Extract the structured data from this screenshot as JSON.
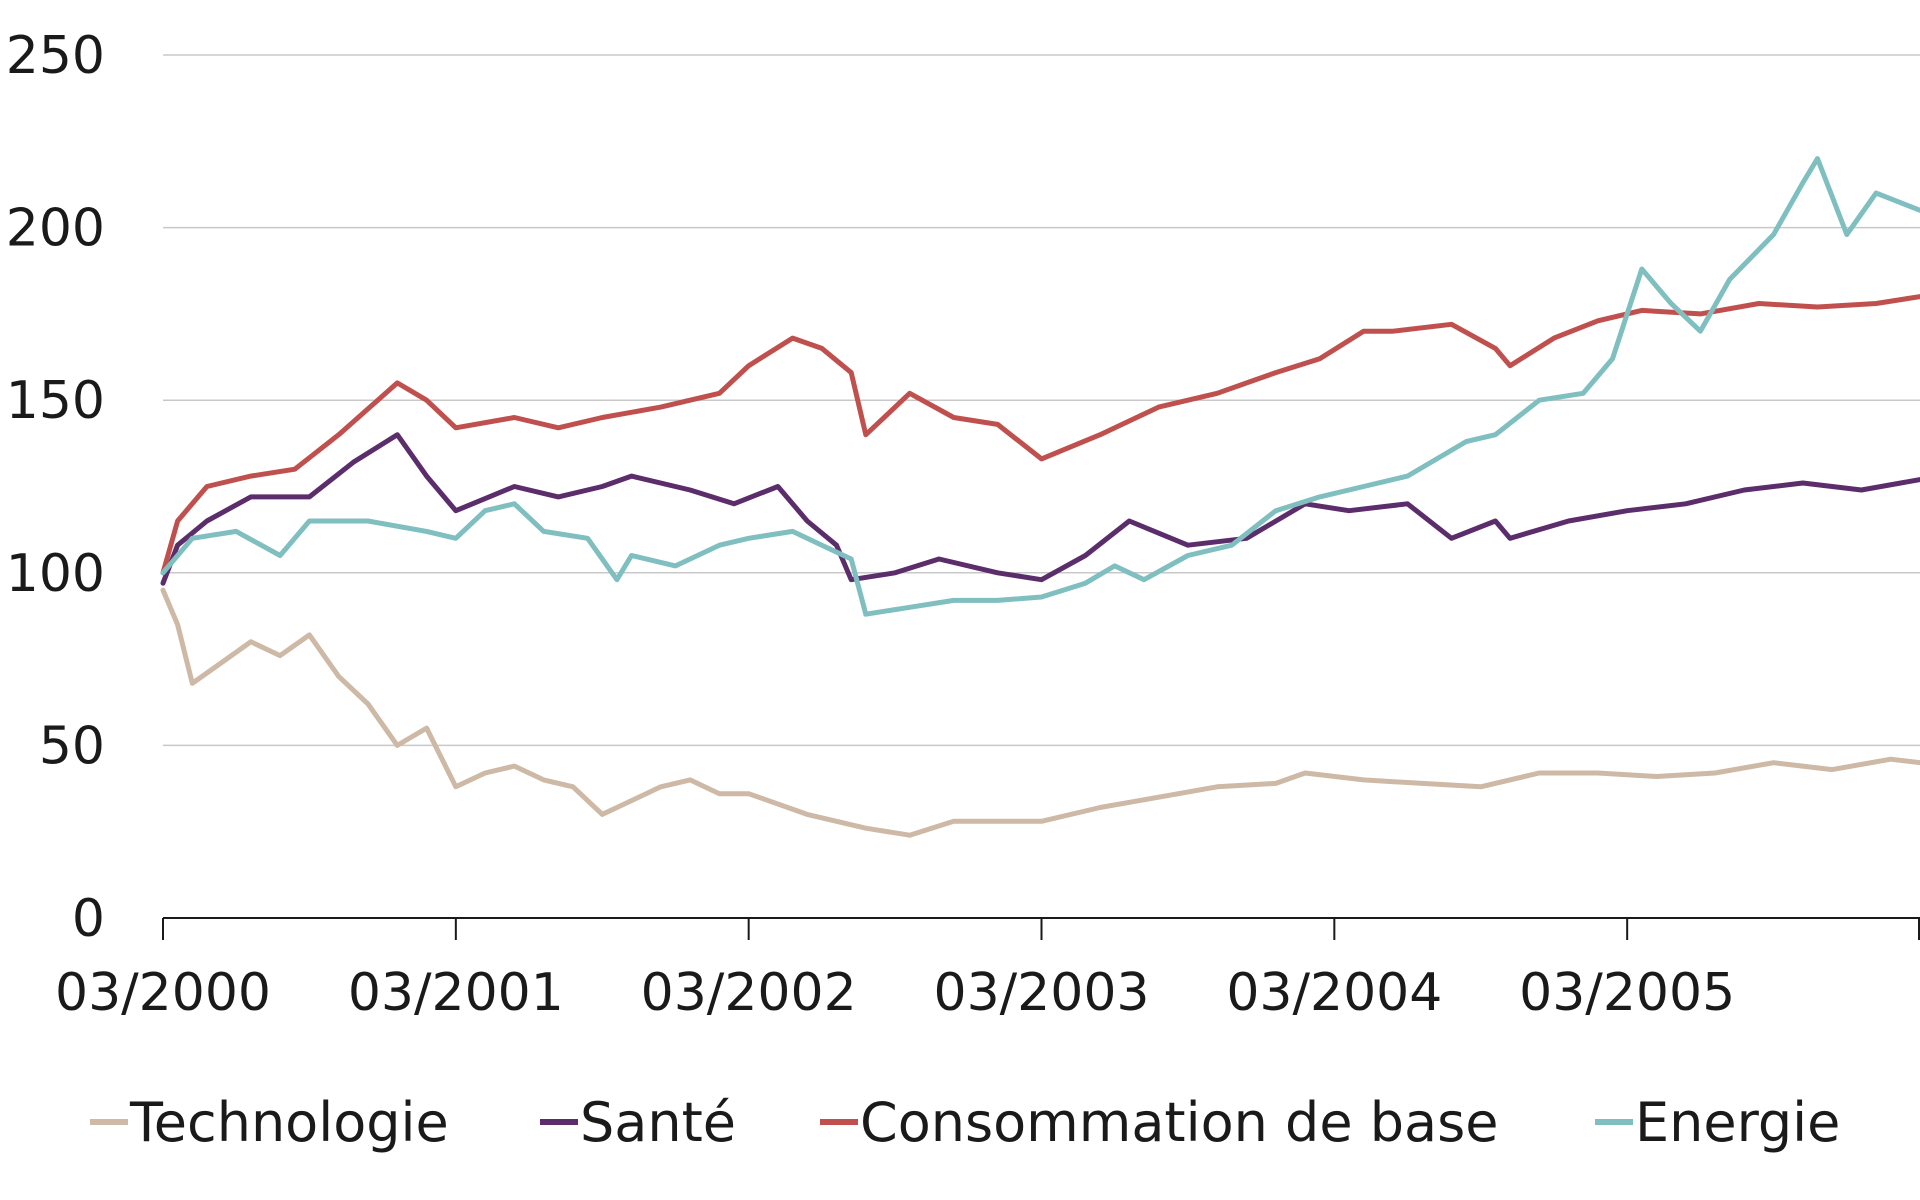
{
  "chart_data": {
    "type": "line",
    "title": "",
    "xlabel": "",
    "ylabel": "",
    "ylim": [
      0,
      250
    ],
    "yticks": [
      0,
      50,
      100,
      150,
      200,
      250
    ],
    "ytick_labels": [
      "0",
      "50",
      "100",
      "150",
      "200",
      "250"
    ],
    "xlim": [
      2000.0,
      2006.0
    ],
    "xticks": [
      2000.0,
      2001.0,
      2002.0,
      2003.0,
      2004.0,
      2005.0
    ],
    "xtick_labels": [
      "03/2000",
      "03/2001",
      "03/2002",
      "03/2003",
      "03/2004",
      "03/2005"
    ],
    "grid": "horizontal",
    "legend_position": "bottom",
    "series": [
      {
        "name": "Technologie",
        "color": "#cdb9a5",
        "x": [
          2000.0,
          2000.05,
          2000.1,
          2000.2,
          2000.3,
          2000.4,
          2000.5,
          2000.6,
          2000.7,
          2000.8,
          2000.9,
          2001.0,
          2001.1,
          2001.2,
          2001.3,
          2001.4,
          2001.5,
          2001.6,
          2001.7,
          2001.8,
          2001.9,
          2002.0,
          2002.2,
          2002.4,
          2002.55,
          2002.7,
          2002.85,
          2003.0,
          2003.2,
          2003.4,
          2003.6,
          2003.8,
          2003.9,
          2004.1,
          2004.3,
          2004.5,
          2004.7,
          2004.9,
          2005.1,
          2005.3,
          2005.5,
          2005.7,
          2005.9,
          2006.0
        ],
        "values": [
          95,
          85,
          68,
          74,
          80,
          76,
          82,
          70,
          62,
          50,
          55,
          38,
          42,
          44,
          40,
          38,
          30,
          34,
          38,
          40,
          36,
          36,
          30,
          26,
          24,
          28,
          28,
          28,
          32,
          35,
          38,
          39,
          42,
          40,
          39,
          38,
          42,
          42,
          41,
          42,
          45,
          43,
          46,
          45
        ]
      },
      {
        "name": "Santé",
        "color": "#5b2d6b",
        "x": [
          2000.0,
          2000.05,
          2000.15,
          2000.3,
          2000.5,
          2000.65,
          2000.8,
          2000.9,
          2001.0,
          2001.2,
          2001.35,
          2001.5,
          2001.6,
          2001.8,
          2001.95,
          2002.1,
          2002.2,
          2002.3,
          2002.35,
          2002.5,
          2002.65,
          2002.85,
          2003.0,
          2003.15,
          2003.3,
          2003.5,
          2003.7,
          2003.9,
          2004.05,
          2004.25,
          2004.4,
          2004.55,
          2004.6,
          2004.8,
          2005.0,
          2005.2,
          2005.4,
          2005.6,
          2005.8,
          2006.0
        ],
        "values": [
          97,
          108,
          115,
          122,
          122,
          132,
          140,
          128,
          118,
          125,
          122,
          125,
          128,
          124,
          120,
          125,
          115,
          108,
          98,
          100,
          104,
          100,
          98,
          105,
          115,
          108,
          110,
          120,
          118,
          120,
          110,
          115,
          110,
          115,
          118,
          120,
          124,
          126,
          124,
          127
        ]
      },
      {
        "name": "Consommation de base",
        "color": "#c0504d",
        "x": [
          2000.0,
          2000.05,
          2000.15,
          2000.3,
          2000.45,
          2000.6,
          2000.8,
          2000.9,
          2001.0,
          2001.2,
          2001.35,
          2001.5,
          2001.7,
          2001.9,
          2002.0,
          2002.15,
          2002.25,
          2002.35,
          2002.4,
          2002.55,
          2002.7,
          2002.85,
          2003.0,
          2003.2,
          2003.4,
          2003.6,
          2003.8,
          2003.95,
          2004.1,
          2004.2,
          2004.4,
          2004.55,
          2004.6,
          2004.75,
          2004.9,
          2005.05,
          2005.25,
          2005.45,
          2005.65,
          2005.85,
          2006.0
        ],
        "values": [
          100,
          115,
          125,
          128,
          130,
          140,
          155,
          150,
          142,
          145,
          142,
          145,
          148,
          152,
          160,
          168,
          165,
          158,
          140,
          152,
          145,
          143,
          133,
          140,
          148,
          152,
          158,
          162,
          170,
          170,
          172,
          165,
          160,
          168,
          173,
          176,
          175,
          178,
          177,
          178,
          180
        ]
      },
      {
        "name": "Energie",
        "color": "#7fbfbf",
        "x": [
          2000.0,
          2000.1,
          2000.25,
          2000.4,
          2000.5,
          2000.7,
          2000.9,
          2001.0,
          2001.1,
          2001.2,
          2001.3,
          2001.45,
          2001.55,
          2001.6,
          2001.75,
          2001.9,
          2002.0,
          2002.15,
          2002.25,
          2002.35,
          2002.4,
          2002.55,
          2002.7,
          2002.85,
          2003.0,
          2003.15,
          2003.25,
          2003.35,
          2003.5,
          2003.65,
          2003.8,
          2003.95,
          2004.1,
          2004.25,
          2004.45,
          2004.55,
          2004.7,
          2004.85,
          2004.95,
          2005.05,
          2005.15,
          2005.25,
          2005.35,
          2005.5,
          2005.6,
          2005.65,
          2005.75,
          2005.85,
          2006.0
        ],
        "values": [
          100,
          110,
          112,
          105,
          115,
          115,
          112,
          110,
          118,
          120,
          112,
          110,
          98,
          105,
          102,
          108,
          110,
          112,
          108,
          104,
          88,
          90,
          92,
          92,
          93,
          97,
          102,
          98,
          105,
          108,
          118,
          122,
          125,
          128,
          138,
          140,
          150,
          152,
          162,
          188,
          178,
          170,
          185,
          198,
          213,
          220,
          198,
          210,
          205
        ]
      }
    ]
  }
}
